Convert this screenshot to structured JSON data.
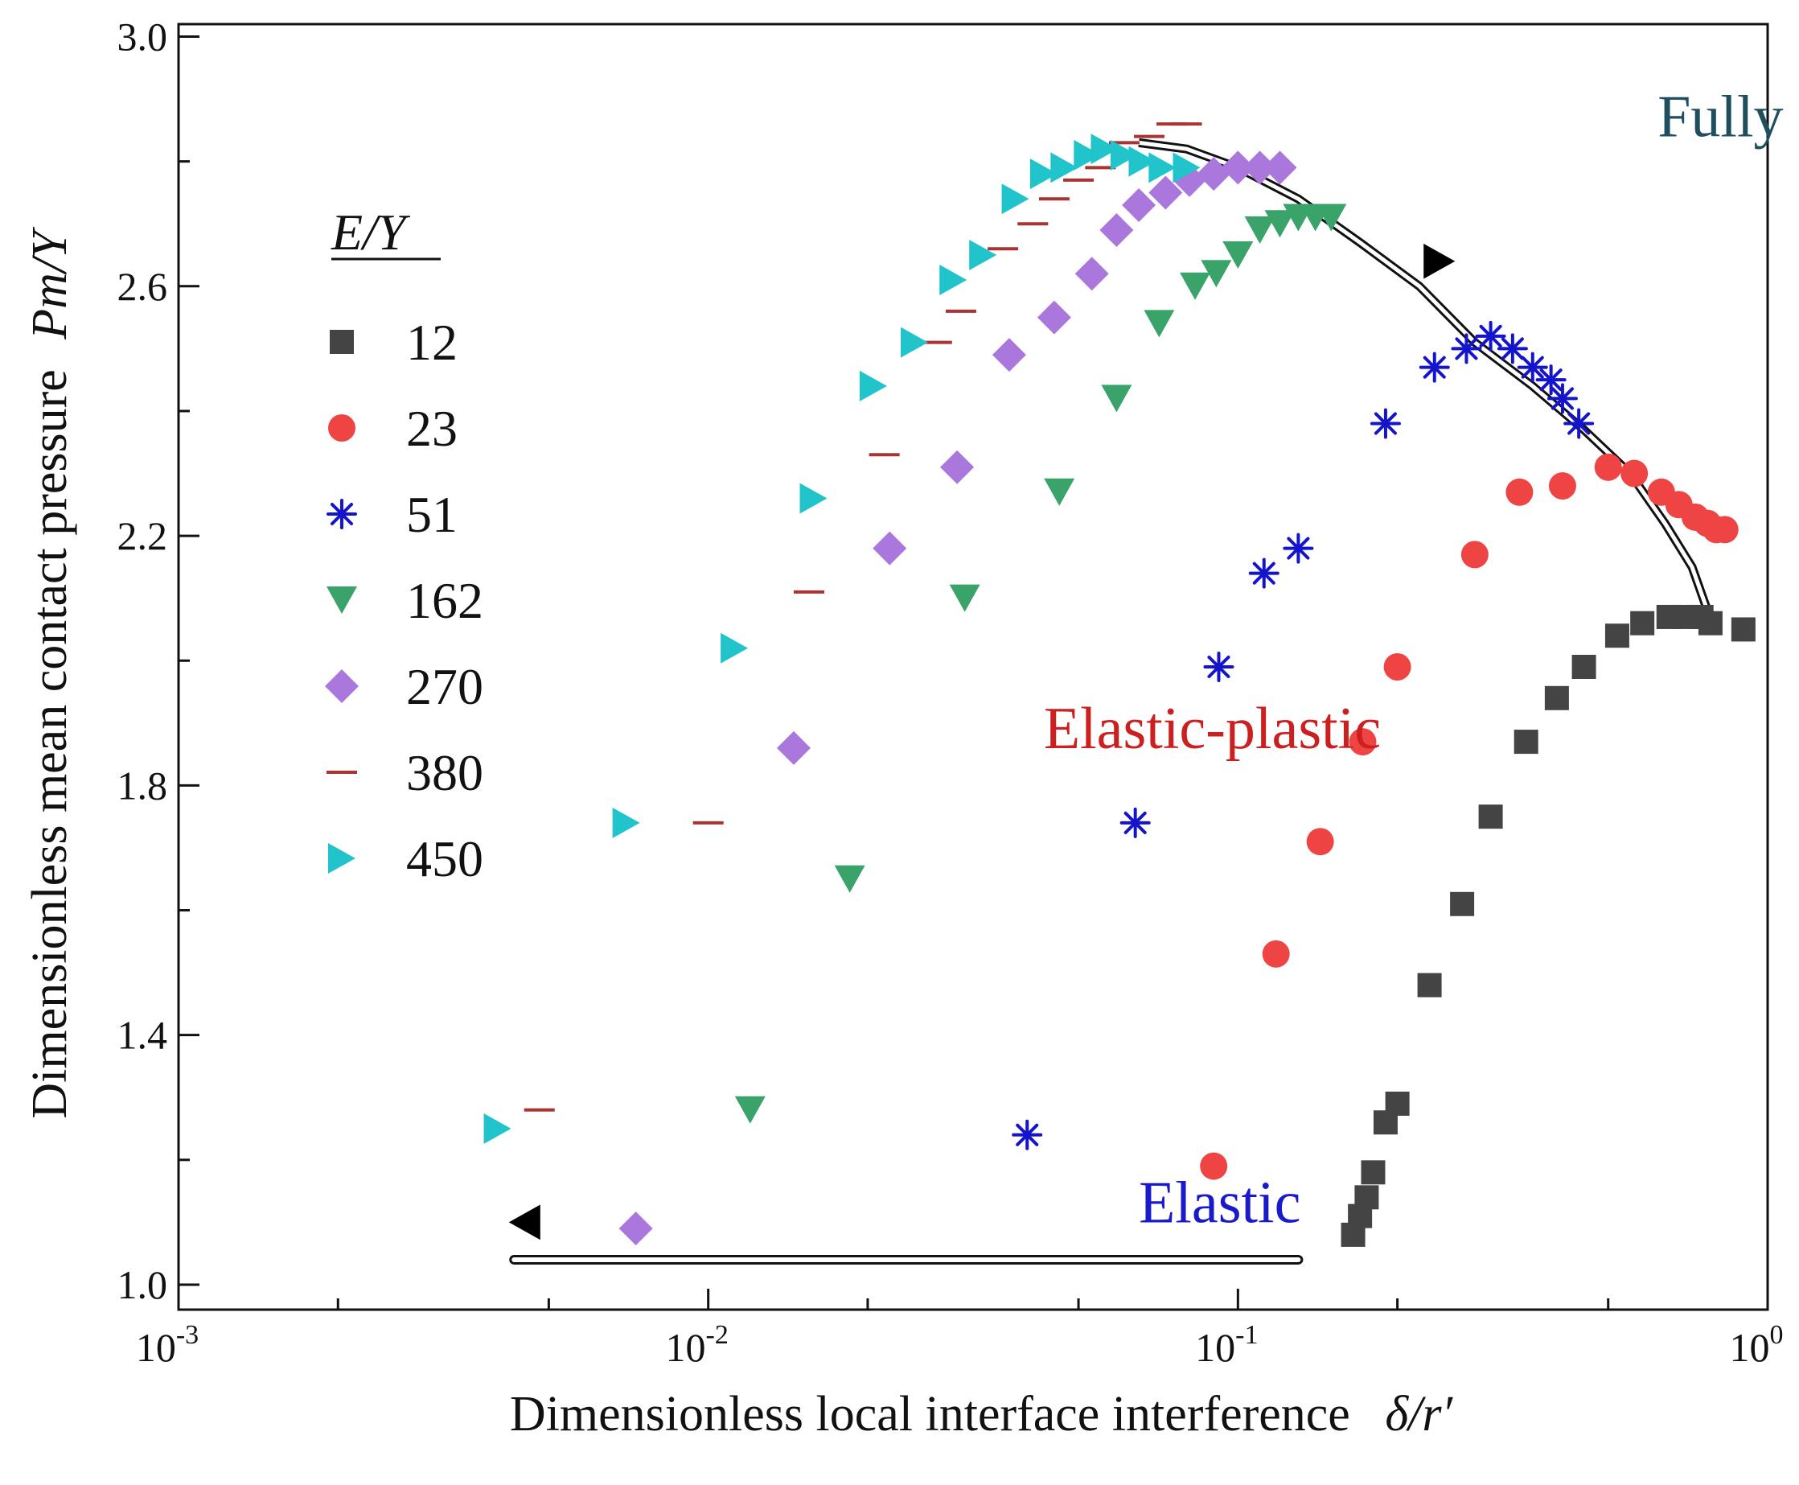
{
  "chart_data": {
    "type": "scatter",
    "xlabel": "Dimensionless local interface interference",
    "xlabel_symbol": "δ/r′",
    "ylabel": "Dimensionless mean contact pressure",
    "ylabel_symbol": "Pm/Y",
    "xscale": "log",
    "xlim": [
      0.001,
      1
    ],
    "ylim": [
      0.96,
      3.02
    ],
    "x_ticks": [
      {
        "value": 0.001,
        "base": "10",
        "exp": "-3"
      },
      {
        "value": 0.01,
        "base": "10",
        "exp": "-2"
      },
      {
        "value": 0.1,
        "base": "10",
        "exp": "-1"
      },
      {
        "value": 1,
        "base": "10",
        "exp": "0"
      }
    ],
    "y_ticks": [
      {
        "value": 1.0,
        "label": "1.0"
      },
      {
        "value": 1.4,
        "label": "1.4"
      },
      {
        "value": 1.8,
        "label": "1.8"
      },
      {
        "value": 2.2,
        "label": "2.2"
      },
      {
        "value": 2.6,
        "label": "2.6"
      },
      {
        "value": 3.0,
        "label": "3.0"
      }
    ],
    "legend": {
      "title": "E/Y",
      "position": "left"
    },
    "regions": [
      {
        "text": "Fully plastic",
        "color": "#1f4e5f",
        "x": 0.62,
        "y": 2.84
      },
      {
        "text": "Elastic-plastic",
        "color": "#cc2020",
        "x": 0.043,
        "y": 1.86
      },
      {
        "text": "Elastic",
        "color": "#1a1acc",
        "x": 0.065,
        "y": 1.1
      }
    ],
    "boundaries": {
      "elastic": {
        "x": [
          0.0043,
          0.13
        ],
        "y": 1.04,
        "color": "#111111"
      },
      "fully_plastic": {
        "x": [
          0.065,
          0.08,
          0.1,
          0.13,
          0.17,
          0.22,
          0.28,
          0.36,
          0.45,
          0.55,
          0.64,
          0.72,
          0.77
        ],
        "y": [
          2.83,
          2.82,
          2.79,
          2.74,
          2.67,
          2.6,
          2.51,
          2.44,
          2.37,
          2.3,
          2.22,
          2.15,
          2.08
        ],
        "color": "#111111"
      },
      "markers": [
        {
          "x": 0.0045,
          "y": 1.1,
          "shape": "tri-left",
          "color": "#000000"
        },
        {
          "x": 0.24,
          "y": 2.64,
          "shape": "tri-right",
          "color": "#000000"
        }
      ]
    },
    "series": [
      {
        "name": "12",
        "marker": "square",
        "color": "#444444",
        "x": [
          0.165,
          0.17,
          0.175,
          0.18,
          0.19,
          0.2,
          0.23,
          0.265,
          0.3,
          0.35,
          0.4,
          0.45,
          0.52,
          0.58,
          0.65,
          0.7,
          0.75,
          0.78,
          0.9
        ],
        "y": [
          1.08,
          1.11,
          1.14,
          1.18,
          1.26,
          1.29,
          1.48,
          1.61,
          1.75,
          1.87,
          1.94,
          1.99,
          2.04,
          2.06,
          2.07,
          2.07,
          2.07,
          2.06,
          2.05
        ]
      },
      {
        "name": "23",
        "marker": "circle",
        "color": "#ee4444",
        "x": [
          0.09,
          0.118,
          0.143,
          0.172,
          0.2,
          0.28,
          0.34,
          0.41,
          0.5,
          0.56,
          0.63,
          0.68,
          0.73,
          0.77,
          0.8,
          0.83
        ],
        "y": [
          1.19,
          1.53,
          1.71,
          1.87,
          1.99,
          2.17,
          2.27,
          2.28,
          2.31,
          2.3,
          2.27,
          2.25,
          2.23,
          2.22,
          2.21,
          2.21
        ]
      },
      {
        "name": "51",
        "marker": "asterisk",
        "color": "#1414cc",
        "x": [
          0.04,
          0.064,
          0.092,
          0.112,
          0.13,
          0.19,
          0.235,
          0.27,
          0.3,
          0.33,
          0.36,
          0.39,
          0.41,
          0.44
        ],
        "y": [
          1.24,
          1.74,
          1.99,
          2.14,
          2.18,
          2.38,
          2.47,
          2.5,
          2.52,
          2.5,
          2.47,
          2.45,
          2.42,
          2.38
        ]
      },
      {
        "name": "162",
        "marker": "tri-down",
        "color": "#3aa36a",
        "x": [
          0.012,
          0.0185,
          0.0305,
          0.046,
          0.059,
          0.071,
          0.083,
          0.091,
          0.1,
          0.11,
          0.12,
          0.13,
          0.14,
          0.15
        ],
        "y": [
          1.28,
          1.65,
          2.1,
          2.27,
          2.42,
          2.54,
          2.6,
          2.62,
          2.65,
          2.69,
          2.7,
          2.71,
          2.71,
          2.71
        ]
      },
      {
        "name": "270",
        "marker": "diamond",
        "color": "#aa77dd",
        "x": [
          0.0073,
          0.0145,
          0.022,
          0.0295,
          0.037,
          0.045,
          0.053,
          0.059,
          0.065,
          0.073,
          0.081,
          0.09,
          0.1,
          0.11,
          0.12
        ],
        "y": [
          1.09,
          1.86,
          2.18,
          2.31,
          2.49,
          2.55,
          2.62,
          2.69,
          2.73,
          2.75,
          2.77,
          2.78,
          2.79,
          2.79,
          2.79
        ]
      },
      {
        "name": "380",
        "marker": "dash",
        "color": "#aa3333",
        "x": [
          0.0048,
          0.01,
          0.0155,
          0.0215,
          0.027,
          0.03,
          0.036,
          0.041,
          0.045,
          0.05,
          0.055,
          0.061,
          0.068,
          0.075,
          0.08
        ],
        "y": [
          1.28,
          1.74,
          2.11,
          2.33,
          2.51,
          2.56,
          2.66,
          2.7,
          2.74,
          2.77,
          2.79,
          2.83,
          2.84,
          2.86,
          2.86
        ]
      },
      {
        "name": "450",
        "marker": "tri-right",
        "color": "#22c4cc",
        "x": [
          0.004,
          0.007,
          0.0112,
          0.0158,
          0.0205,
          0.0245,
          0.029,
          0.033,
          0.038,
          0.043,
          0.047,
          0.052,
          0.056,
          0.061,
          0.066,
          0.072,
          0.08
        ],
        "y": [
          1.25,
          1.74,
          2.02,
          2.26,
          2.44,
          2.51,
          2.61,
          2.65,
          2.74,
          2.78,
          2.79,
          2.81,
          2.82,
          2.81,
          2.8,
          2.79,
          2.79
        ]
      }
    ]
  }
}
